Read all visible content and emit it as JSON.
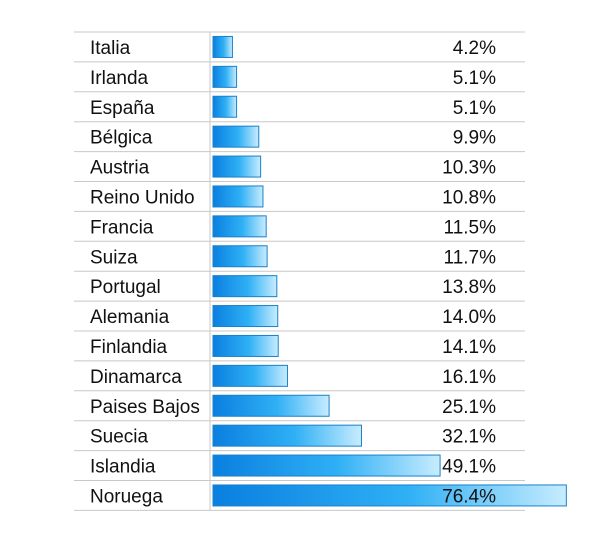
{
  "chart_data": {
    "type": "bar",
    "orientation": "horizontal",
    "title": "",
    "xlabel": "",
    "ylabel": "",
    "value_suffix": "%",
    "xlim": [
      0,
      80
    ],
    "grid": true,
    "legend": "none",
    "categories": [
      "Italia",
      "Irlanda",
      "España",
      "Bélgica",
      "Austria",
      "Reino Unido",
      "Francia",
      "Suiza",
      "Portugal",
      "Alemania",
      "Finlandia",
      "Dinamarca",
      "Paises Bajos",
      "Suecia",
      "Islandia",
      "Noruega"
    ],
    "values": [
      4.2,
      5.1,
      5.1,
      9.9,
      10.3,
      10.8,
      11.5,
      11.7,
      13.8,
      14.0,
      14.1,
      16.1,
      25.1,
      32.1,
      49.1,
      76.4
    ],
    "value_labels": [
      "4.2%",
      "5.1%",
      "5.1%",
      "9.9%",
      "10.3%",
      "10.8%",
      "11.5%",
      "11.7%",
      "13.8%",
      "14.0%",
      "14.1%",
      "16.1%",
      "25.1%",
      "32.1%",
      "49.1%",
      "76.4%"
    ],
    "colors": {
      "bar_dark": "#0a7fe0",
      "bar_mid": "#2fb0f5",
      "bar_light": "#c8ecff",
      "bar_stroke": "#1a80c8",
      "grid": "#c8c8c8"
    }
  }
}
